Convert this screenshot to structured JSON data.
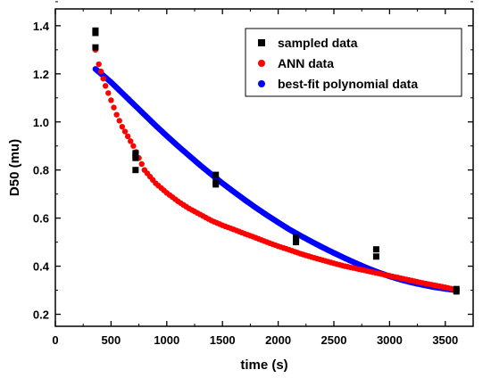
{
  "chart_data": {
    "type": "scatter",
    "xlabel": "time (s)",
    "ylabel": "D50 (mu)",
    "xlim": [
      0,
      3750
    ],
    "ylim": [
      0.15,
      1.47
    ],
    "x_ticks": [
      0,
      500,
      1000,
      1500,
      2000,
      2500,
      3000,
      3500
    ],
    "y_ticks": [
      0.2,
      0.4,
      0.6,
      0.8,
      1.0,
      1.2,
      1.4
    ],
    "x_tick_labels": [
      "0",
      "500",
      "1000",
      "1500",
      "2000",
      "2500",
      "3000",
      "3500"
    ],
    "y_tick_labels": [
      "0.2",
      "0.4",
      "0.6",
      "0.8",
      "1.0",
      "1.2",
      "1.4"
    ],
    "grid": false,
    "legend_position": "top-right",
    "series": [
      {
        "name": "sampled data",
        "color": "#000000",
        "marker": "square",
        "points": [
          [
            360,
            1.38
          ],
          [
            360,
            1.37
          ],
          [
            360,
            1.31
          ],
          [
            720,
            0.87
          ],
          [
            720,
            0.86
          ],
          [
            720,
            0.85
          ],
          [
            720,
            0.8
          ],
          [
            1440,
            0.78
          ],
          [
            1440,
            0.75
          ],
          [
            1440,
            0.74
          ],
          [
            2160,
            0.52
          ],
          [
            2160,
            0.51
          ],
          [
            2160,
            0.5
          ],
          [
            2880,
            0.47
          ],
          [
            2880,
            0.44
          ],
          [
            3600,
            0.305
          ],
          [
            3600,
            0.295
          ]
        ]
      },
      {
        "name": "ANN data",
        "color": "#ff0000",
        "marker": "circle",
        "points": [
          [
            360,
            1.3
          ],
          [
            390,
            1.24
          ],
          [
            450,
            1.15
          ],
          [
            500,
            1.09
          ],
          [
            550,
            1.03
          ],
          [
            600,
            0.98
          ],
          [
            650,
            0.94
          ],
          [
            700,
            0.9
          ],
          [
            750,
            0.85
          ],
          [
            800,
            0.8
          ],
          [
            900,
            0.745
          ],
          [
            1000,
            0.705
          ],
          [
            1100,
            0.67
          ],
          [
            1200,
            0.64
          ],
          [
            1300,
            0.615
          ],
          [
            1400,
            0.59
          ],
          [
            1500,
            0.57
          ],
          [
            1600,
            0.553
          ],
          [
            1700,
            0.535
          ],
          [
            1800,
            0.518
          ],
          [
            1900,
            0.5
          ],
          [
            2000,
            0.483
          ],
          [
            2100,
            0.468
          ],
          [
            2200,
            0.452
          ],
          [
            2300,
            0.438
          ],
          [
            2400,
            0.425
          ],
          [
            2500,
            0.412
          ],
          [
            2600,
            0.4
          ],
          [
            2700,
            0.39
          ],
          [
            2800,
            0.38
          ],
          [
            2900,
            0.37
          ],
          [
            3000,
            0.36
          ],
          [
            3100,
            0.35
          ],
          [
            3200,
            0.34
          ],
          [
            3300,
            0.33
          ],
          [
            3400,
            0.321
          ],
          [
            3500,
            0.312
          ],
          [
            3600,
            0.302
          ]
        ]
      },
      {
        "name": "best-fit polynomial data",
        "color": "#0000ff",
        "marker": "circle",
        "points": [
          [
            360,
            1.22
          ],
          [
            450,
            1.185
          ],
          [
            500,
            1.165
          ],
          [
            600,
            1.12
          ],
          [
            700,
            1.075
          ],
          [
            800,
            1.03
          ],
          [
            900,
            0.985
          ],
          [
            1000,
            0.942
          ],
          [
            1100,
            0.9
          ],
          [
            1200,
            0.86
          ],
          [
            1300,
            0.82
          ],
          [
            1400,
            0.782
          ],
          [
            1500,
            0.745
          ],
          [
            1600,
            0.71
          ],
          [
            1700,
            0.676
          ],
          [
            1800,
            0.643
          ],
          [
            1900,
            0.612
          ],
          [
            2000,
            0.582
          ],
          [
            2100,
            0.553
          ],
          [
            2200,
            0.527
          ],
          [
            2300,
            0.502
          ],
          [
            2400,
            0.478
          ],
          [
            2500,
            0.455
          ],
          [
            2600,
            0.433
          ],
          [
            2700,
            0.412
          ],
          [
            2800,
            0.392
          ],
          [
            2900,
            0.374
          ],
          [
            3000,
            0.358
          ],
          [
            3100,
            0.344
          ],
          [
            3200,
            0.332
          ],
          [
            3300,
            0.322
          ],
          [
            3400,
            0.313
          ],
          [
            3500,
            0.306
          ],
          [
            3600,
            0.3
          ]
        ]
      }
    ]
  }
}
